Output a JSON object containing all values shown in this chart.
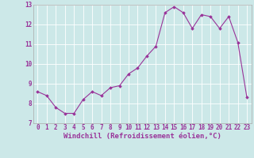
{
  "x": [
    0,
    1,
    2,
    3,
    4,
    5,
    6,
    7,
    8,
    9,
    10,
    11,
    12,
    13,
    14,
    15,
    16,
    17,
    18,
    19,
    20,
    21,
    22,
    23
  ],
  "y": [
    8.6,
    8.4,
    7.8,
    7.5,
    7.5,
    8.2,
    8.6,
    8.4,
    8.8,
    8.9,
    9.5,
    9.8,
    10.4,
    10.9,
    12.6,
    12.9,
    12.6,
    11.8,
    12.5,
    12.4,
    11.8,
    12.4,
    11.1,
    8.3
  ],
  "xlabel": "Windchill (Refroidissement éolien,°C)",
  "ylim": [
    7,
    13
  ],
  "yticks": [
    7,
    8,
    9,
    10,
    11,
    12,
    13
  ],
  "xticks": [
    0,
    1,
    2,
    3,
    4,
    5,
    6,
    7,
    8,
    9,
    10,
    11,
    12,
    13,
    14,
    15,
    16,
    17,
    18,
    19,
    20,
    21,
    22,
    23
  ],
  "line_color": "#993399",
  "marker": "D",
  "marker_size": 1.8,
  "bg_color": "#cce8e8",
  "grid_color": "#ffffff",
  "tick_fontsize": 5.5,
  "xlabel_fontsize": 6.5,
  "linewidth": 0.8
}
